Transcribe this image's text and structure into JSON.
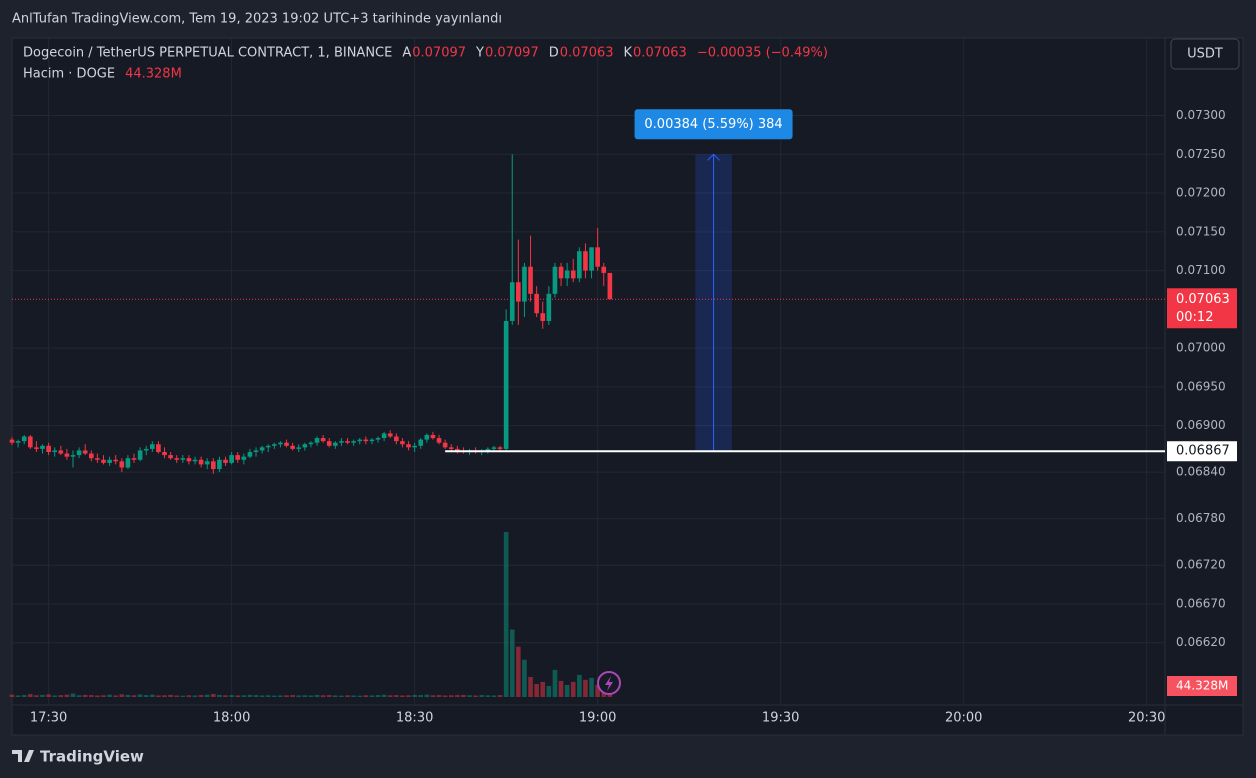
{
  "header": "AnlTufan TradingView.com, Tem 19, 2023 19:02 UTC+3 tarihinde yayınlandı",
  "chart_data": {
    "type": "candlestick",
    "title": "Dogecoin / TetherUS PERPETUAL CONTRACT, 1, BINANCE",
    "ohlc_legend": [
      {
        "label": "A",
        "value": 0.07097
      },
      {
        "label": "Y",
        "value": 0.07097
      },
      {
        "label": "D",
        "value": 0.07063
      },
      {
        "label": "K",
        "value": 0.07063
      }
    ],
    "change": "−0.00035 (−0.49%)",
    "volume_title": "Hacim · DOGE",
    "last_volume_label": "44.328M",
    "currency": "USDT",
    "last_price": 0.07063,
    "countdown": "00:12",
    "up_color": "#089981",
    "down_color": "#f23645",
    "x": [
      "17:24",
      "17:25",
      "17:26",
      "17:27",
      "17:28",
      "17:29",
      "17:30",
      "17:31",
      "17:32",
      "17:33",
      "17:34",
      "17:35",
      "17:36",
      "17:37",
      "17:38",
      "17:39",
      "17:40",
      "17:41",
      "17:42",
      "17:43",
      "17:44",
      "17:45",
      "17:46",
      "17:47",
      "17:48",
      "17:49",
      "17:50",
      "17:51",
      "17:52",
      "17:53",
      "17:54",
      "17:55",
      "17:56",
      "17:57",
      "17:58",
      "17:59",
      "18:00",
      "18:01",
      "18:02",
      "18:03",
      "18:04",
      "18:05",
      "18:06",
      "18:07",
      "18:08",
      "18:09",
      "18:10",
      "18:11",
      "18:12",
      "18:13",
      "18:14",
      "18:15",
      "18:16",
      "18:17",
      "18:18",
      "18:19",
      "18:20",
      "18:21",
      "18:22",
      "18:23",
      "18:24",
      "18:25",
      "18:26",
      "18:27",
      "18:28",
      "18:29",
      "18:30",
      "18:31",
      "18:32",
      "18:33",
      "18:34",
      "18:35",
      "18:36",
      "18:37",
      "18:38",
      "18:39",
      "18:40",
      "18:41",
      "18:42",
      "18:43",
      "18:44",
      "18:45",
      "18:46",
      "18:47",
      "18:48",
      "18:49",
      "18:50",
      "18:51",
      "18:52",
      "18:53",
      "18:54",
      "18:55",
      "18:56",
      "18:57",
      "18:58",
      "18:59",
      "19:00",
      "19:01",
      "19:02"
    ],
    "open": [
      0.06882,
      0.06878,
      0.0688,
      0.06886,
      0.06872,
      0.0687,
      0.06874,
      0.06866,
      0.06868,
      0.06864,
      0.0686,
      0.06862,
      0.06868,
      0.06864,
      0.06858,
      0.06856,
      0.06852,
      0.06856,
      0.06854,
      0.06846,
      0.06858,
      0.06856,
      0.06868,
      0.0687,
      0.06876,
      0.06866,
      0.06862,
      0.06858,
      0.06856,
      0.06858,
      0.06854,
      0.06856,
      0.0685,
      0.06854,
      0.06844,
      0.06856,
      0.06852,
      0.06862,
      0.06856,
      0.0686,
      0.06866,
      0.06868,
      0.06872,
      0.06874,
      0.06876,
      0.06878,
      0.06874,
      0.0687,
      0.06872,
      0.06876,
      0.06878,
      0.06884,
      0.0688,
      0.06874,
      0.06878,
      0.0688,
      0.06878,
      0.0688,
      0.06882,
      0.0688,
      0.06882,
      0.06884,
      0.0689,
      0.06886,
      0.0688,
      0.06876,
      0.06872,
      0.06874,
      0.06882,
      0.06888,
      0.06884,
      0.06878,
      0.06872,
      0.0687,
      0.06868,
      0.06866,
      0.06868,
      0.06866,
      0.06868,
      0.0687,
      0.06872,
      0.0687,
      0.07035,
      0.07085,
      0.0706,
      0.07105,
      0.0707,
      0.07045,
      0.07035,
      0.0707,
      0.07105,
      0.0709,
      0.071,
      0.0709,
      0.07125,
      0.071,
      0.0713,
      0.07105,
      0.07097
    ],
    "high": [
      0.06885,
      0.06882,
      0.06888,
      0.06888,
      0.0688,
      0.06876,
      0.06878,
      0.06872,
      0.06874,
      0.0687,
      0.06868,
      0.06872,
      0.06876,
      0.06868,
      0.06864,
      0.06862,
      0.0686,
      0.06862,
      0.06858,
      0.06862,
      0.06864,
      0.06872,
      0.06874,
      0.0688,
      0.0688,
      0.06872,
      0.06866,
      0.06862,
      0.06862,
      0.06862,
      0.0686,
      0.0686,
      0.06858,
      0.06858,
      0.0686,
      0.0686,
      0.06866,
      0.06866,
      0.06864,
      0.0687,
      0.06872,
      0.06874,
      0.06876,
      0.06878,
      0.0688,
      0.06882,
      0.06878,
      0.06876,
      0.06878,
      0.0688,
      0.06886,
      0.06888,
      0.06884,
      0.0688,
      0.06884,
      0.06884,
      0.06882,
      0.06884,
      0.06886,
      0.06884,
      0.06886,
      0.06892,
      0.06894,
      0.0689,
      0.06884,
      0.0688,
      0.06878,
      0.06884,
      0.0689,
      0.06892,
      0.06888,
      0.06882,
      0.06876,
      0.06874,
      0.06872,
      0.0687,
      0.06872,
      0.0687,
      0.06872,
      0.06874,
      0.06874,
      0.0705,
      0.0725,
      0.0714,
      0.0711,
      0.07145,
      0.0708,
      0.0706,
      0.0708,
      0.0711,
      0.0711,
      0.0711,
      0.07115,
      0.0713,
      0.07135,
      0.0713,
      0.07155,
      0.0711,
      0.07097
    ],
    "low": [
      0.06875,
      0.06872,
      0.06876,
      0.0687,
      0.06866,
      0.06864,
      0.06862,
      0.0686,
      0.06862,
      0.06856,
      0.06846,
      0.06858,
      0.06862,
      0.06854,
      0.06852,
      0.0685,
      0.06848,
      0.0685,
      0.0684,
      0.06844,
      0.06852,
      0.06854,
      0.06862,
      0.06866,
      0.06864,
      0.06858,
      0.06856,
      0.06852,
      0.06852,
      0.0685,
      0.0685,
      0.06846,
      0.06844,
      0.06838,
      0.0684,
      0.06848,
      0.0685,
      0.06852,
      0.0685,
      0.06858,
      0.0686,
      0.06864,
      0.06866,
      0.0687,
      0.06872,
      0.06872,
      0.06868,
      0.06866,
      0.06868,
      0.06872,
      0.06874,
      0.06878,
      0.06872,
      0.0687,
      0.06874,
      0.06876,
      0.06874,
      0.06876,
      0.06876,
      0.06876,
      0.06878,
      0.0688,
      0.06884,
      0.06876,
      0.06872,
      0.06868,
      0.06866,
      0.0687,
      0.06878,
      0.06882,
      0.06876,
      0.0687,
      0.06866,
      0.06864,
      0.06864,
      0.06862,
      0.06864,
      0.06862,
      0.06864,
      0.06866,
      0.06866,
      0.06868,
      0.0703,
      0.0703,
      0.0704,
      0.0706,
      0.0704,
      0.07025,
      0.0703,
      0.07065,
      0.0708,
      0.0708,
      0.07085,
      0.07085,
      0.0709,
      0.0709,
      0.071,
      0.0708,
      0.07063
    ],
    "close": [
      0.06878,
      0.0688,
      0.06886,
      0.06872,
      0.0687,
      0.06874,
      0.06866,
      0.06868,
      0.06864,
      0.0686,
      0.06862,
      0.06868,
      0.06864,
      0.06858,
      0.06856,
      0.06852,
      0.06856,
      0.06854,
      0.06846,
      0.06858,
      0.06856,
      0.06868,
      0.0687,
      0.06876,
      0.06866,
      0.06862,
      0.06858,
      0.06856,
      0.06858,
      0.06854,
      0.06856,
      0.0685,
      0.06854,
      0.06844,
      0.06856,
      0.06852,
      0.06862,
      0.06856,
      0.0686,
      0.06866,
      0.06868,
      0.06872,
      0.06874,
      0.06876,
      0.06878,
      0.06874,
      0.0687,
      0.06872,
      0.06876,
      0.06878,
      0.06884,
      0.0688,
      0.06874,
      0.06878,
      0.0688,
      0.06878,
      0.0688,
      0.06882,
      0.0688,
      0.06882,
      0.06884,
      0.0689,
      0.06886,
      0.0688,
      0.06876,
      0.06872,
      0.06874,
      0.06882,
      0.06888,
      0.06884,
      0.06878,
      0.06872,
      0.0687,
      0.06868,
      0.06866,
      0.06868,
      0.06866,
      0.06868,
      0.0687,
      0.06872,
      0.0687,
      0.07035,
      0.07085,
      0.0706,
      0.07105,
      0.0707,
      0.07045,
      0.07035,
      0.0707,
      0.07105,
      0.0709,
      0.071,
      0.0709,
      0.07125,
      0.071,
      0.0713,
      0.07105,
      0.07097,
      0.07063
    ],
    "volume": [
      12,
      8,
      10,
      15,
      9,
      11,
      14,
      8,
      10,
      12,
      18,
      9,
      11,
      10,
      8,
      9,
      12,
      8,
      14,
      11,
      9,
      13,
      10,
      12,
      8,
      9,
      11,
      8,
      7,
      9,
      8,
      10,
      12,
      16,
      11,
      9,
      10,
      8,
      9,
      11,
      10,
      8,
      9,
      7,
      8,
      9,
      10,
      8,
      9,
      8,
      11,
      9,
      10,
      8,
      7,
      9,
      8,
      7,
      9,
      8,
      10,
      12,
      9,
      10,
      8,
      9,
      11,
      10,
      12,
      9,
      10,
      8,
      9,
      10,
      11,
      9,
      8,
      10,
      9,
      8,
      10,
      863,
      353,
      263,
      195,
      105,
      68,
      79,
      58,
      142,
      84,
      63,
      79,
      116,
      90,
      100,
      63,
      70,
      44.328
    ],
    "xlim": [
      "17:24",
      "20:33"
    ],
    "xticks": [
      "17:30",
      "18:00",
      "18:30",
      "19:00",
      "19:30",
      "20:00",
      "20:30"
    ],
    "ylim": [
      0.0655,
      0.074
    ],
    "volume_lim": [
      0,
      1000
    ],
    "yticks": [
      {
        "value": 0.073,
        "label": "0.07300"
      },
      {
        "value": 0.0725,
        "label": "0.07250"
      },
      {
        "value": 0.072,
        "label": "0.07200"
      },
      {
        "value": 0.0715,
        "label": "0.07150"
      },
      {
        "value": 0.071,
        "label": "0.07100"
      },
      {
        "value": 0.07,
        "label": "0.07000"
      },
      {
        "value": 0.0695,
        "label": "0.06950"
      },
      {
        "value": 0.069,
        "label": "0.06900"
      },
      {
        "value": 0.0684,
        "label": "0.06840"
      },
      {
        "value": 0.0678,
        "label": "0.06780"
      },
      {
        "value": 0.0672,
        "label": "0.06720"
      },
      {
        "value": 0.0667,
        "label": "0.06670"
      },
      {
        "value": 0.0662,
        "label": "0.06620"
      }
    ],
    "grid": true,
    "horizontal_line": {
      "value": 0.06867,
      "from": "18:35"
    },
    "measure": {
      "label": "0.00384 (5.59%) 384",
      "from": 0.06867,
      "to": 0.0725,
      "x": [
        "19:16",
        "19:22"
      ]
    }
  },
  "footer": "TradingView"
}
